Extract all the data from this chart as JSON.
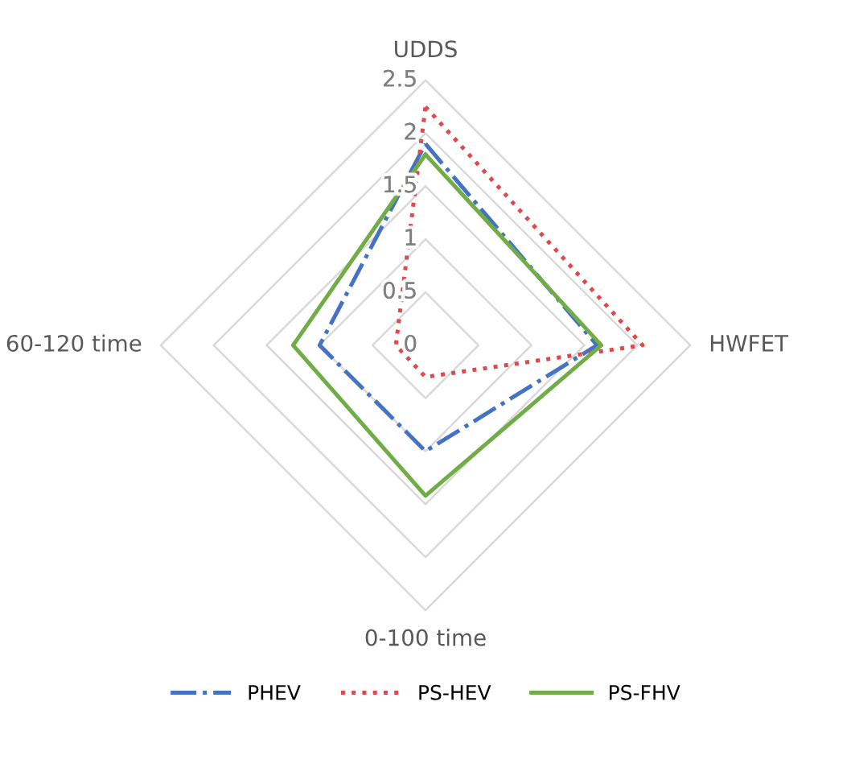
{
  "chart_data": {
    "type": "radar",
    "categories": [
      "UDDS",
      "HWFET",
      "0-100 time",
      "60-120 time"
    ],
    "ylim": [
      0,
      2.5
    ],
    "yticks": [
      0,
      0.5,
      1,
      1.5,
      2,
      2.5
    ],
    "grid": true,
    "legend": "bottom",
    "marker": "none",
    "series": [
      {
        "name": "PHEV",
        "color": "#4472c4",
        "line_style": "dashdot",
        "values": [
          1.9,
          1.62,
          1.0,
          1.0
        ]
      },
      {
        "name": "PS-HEV",
        "color": "#e0484c",
        "line_style": "dotted",
        "values": [
          2.25,
          2.05,
          0.3,
          0.28
        ]
      },
      {
        "name": "PS-FHV",
        "color": "#70ad47",
        "line_style": "solid",
        "values": [
          1.8,
          1.66,
          1.42,
          1.25
        ]
      }
    ]
  }
}
